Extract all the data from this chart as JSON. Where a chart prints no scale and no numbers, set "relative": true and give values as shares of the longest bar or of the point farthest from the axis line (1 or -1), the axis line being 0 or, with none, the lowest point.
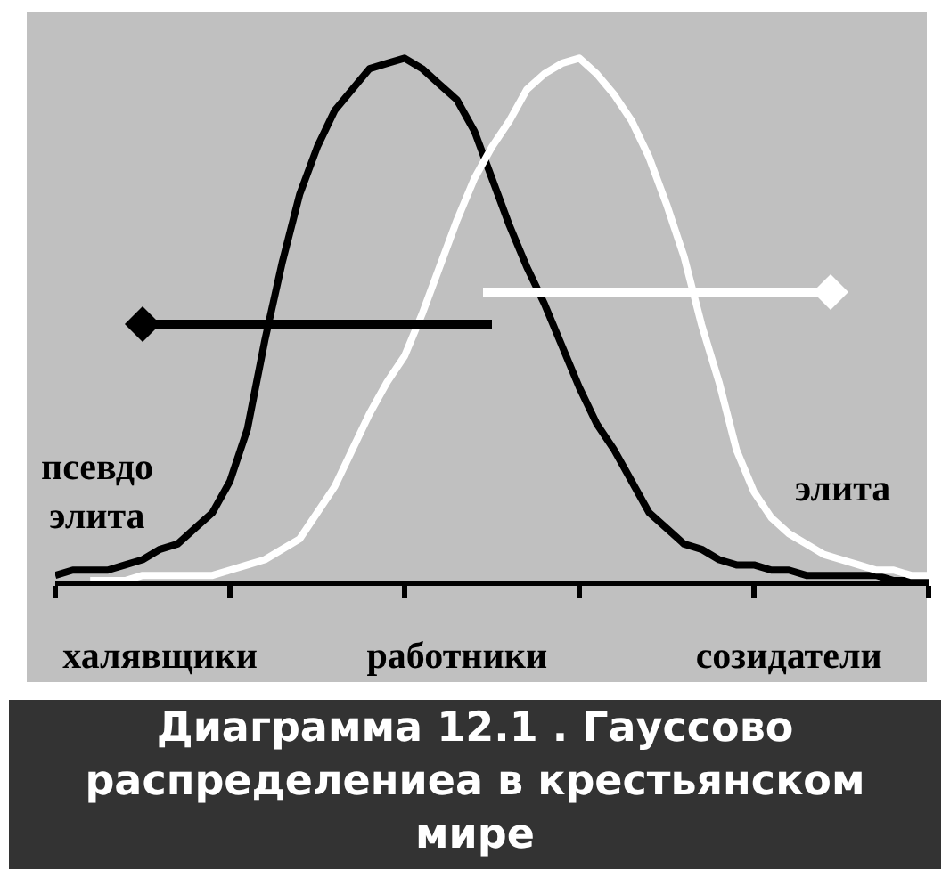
{
  "chart_data": {
    "type": "line",
    "title": "Диаграмма 12.1 . Гауссово распределениеа в крестьянском мире",
    "relative": true,
    "categories": [
      null,
      null,
      null,
      null,
      null,
      null,
      "халявщики",
      null,
      null,
      null,
      null,
      null,
      null,
      null,
      null,
      null,
      null,
      null,
      null,
      null,
      null,
      null,
      null,
      "работники",
      null,
      null,
      null,
      null,
      null,
      null,
      null,
      null,
      null,
      null,
      null,
      null,
      null,
      null,
      null,
      null,
      null,
      null,
      "созидатели",
      null,
      null,
      null,
      null,
      null,
      null,
      null,
      null
    ],
    "series": [
      {
        "color": "#000000",
        "values": [
          0.01,
          0.02,
          0.02,
          0.02,
          0.03,
          0.04,
          0.06,
          0.07,
          0.1,
          0.13,
          0.19,
          0.29,
          0.46,
          0.61,
          0.74,
          0.83,
          0.9,
          0.94,
          0.98,
          0.99,
          1.0,
          0.98,
          0.95,
          0.92,
          0.86,
          0.77,
          0.68,
          0.6,
          0.53,
          0.45,
          0.37,
          0.3,
          0.25,
          0.19,
          0.13,
          0.1,
          0.07,
          0.06,
          0.04,
          0.03,
          0.03,
          0.02,
          0.02,
          0.01,
          0.01,
          0.01,
          0.01,
          0.01,
          0.0,
          0.0,
          0.0
        ]
      },
      {
        "color": "#ffffff",
        "values": [
          null,
          null,
          0.0,
          0.0,
          0.0,
          0.01,
          0.01,
          0.01,
          0.01,
          0.01,
          0.02,
          0.03,
          0.04,
          0.06,
          0.08,
          0.13,
          0.18,
          0.25,
          0.32,
          0.38,
          0.43,
          0.51,
          0.6,
          0.69,
          0.77,
          0.83,
          0.88,
          0.94,
          0.97,
          0.99,
          1.0,
          0.97,
          0.93,
          0.88,
          0.81,
          0.72,
          0.62,
          0.49,
          0.38,
          0.25,
          0.17,
          0.12,
          0.09,
          0.07,
          0.05,
          0.04,
          0.03,
          0.02,
          0.02,
          0.01,
          0.01
        ]
      }
    ],
    "annotations": [
      "псевдо элита",
      "элита"
    ]
  }
}
